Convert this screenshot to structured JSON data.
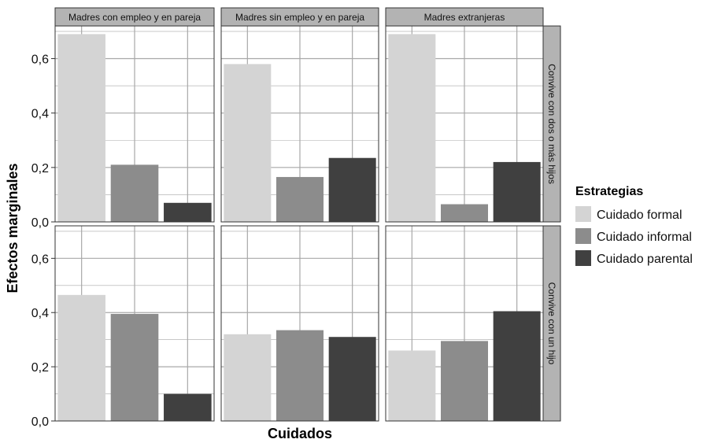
{
  "chart_data": {
    "type": "bar",
    "xlabel": "Cuidados",
    "ylabel": "Efectos marginales",
    "ylim": [
      0,
      0.72
    ],
    "yticks": [
      "0,0",
      "0,2",
      "0,4",
      "0,6"
    ],
    "ytick_values": [
      0,
      0.2,
      0.4,
      0.6
    ],
    "grid": true,
    "legend": {
      "title": "Estrategias",
      "placement": "right",
      "entries": [
        "Cuidado formal",
        "Cuidado informal",
        "Cuidado parental"
      ]
    },
    "series_colors": {
      "Cuidado formal": "#d4d4d4",
      "Cuidado informal": "#8c8c8c",
      "Cuidado parental": "#404040"
    },
    "facet_columns": [
      "Madres con empleo y en pareja",
      "Madres sin empleo y en pareja",
      "Madres extranjeras"
    ],
    "facet_rows": [
      "Convive con dos o más hijos",
      "Convive con un hijo"
    ],
    "panels": [
      {
        "column": "Madres con empleo y en pareja",
        "row": "Convive con dos o más hijos",
        "values": [
          0.69,
          0.21,
          0.07
        ]
      },
      {
        "column": "Madres sin empleo y en pareja",
        "row": "Convive con dos o más hijos",
        "values": [
          0.58,
          0.165,
          0.235
        ]
      },
      {
        "column": "Madres extranjeras",
        "row": "Convive con dos o más hijos",
        "values": [
          0.69,
          0.065,
          0.22
        ]
      },
      {
        "column": "Madres con empleo y en pareja",
        "row": "Convive con un hijo",
        "values": [
          0.465,
          0.395,
          0.1
        ]
      },
      {
        "column": "Madres sin empleo y en pareja",
        "row": "Convive con un hijo",
        "values": [
          0.32,
          0.335,
          0.31
        ]
      },
      {
        "column": "Madres extranjeras",
        "row": "Convive con un hijo",
        "values": [
          0.26,
          0.295,
          0.405
        ]
      }
    ]
  }
}
